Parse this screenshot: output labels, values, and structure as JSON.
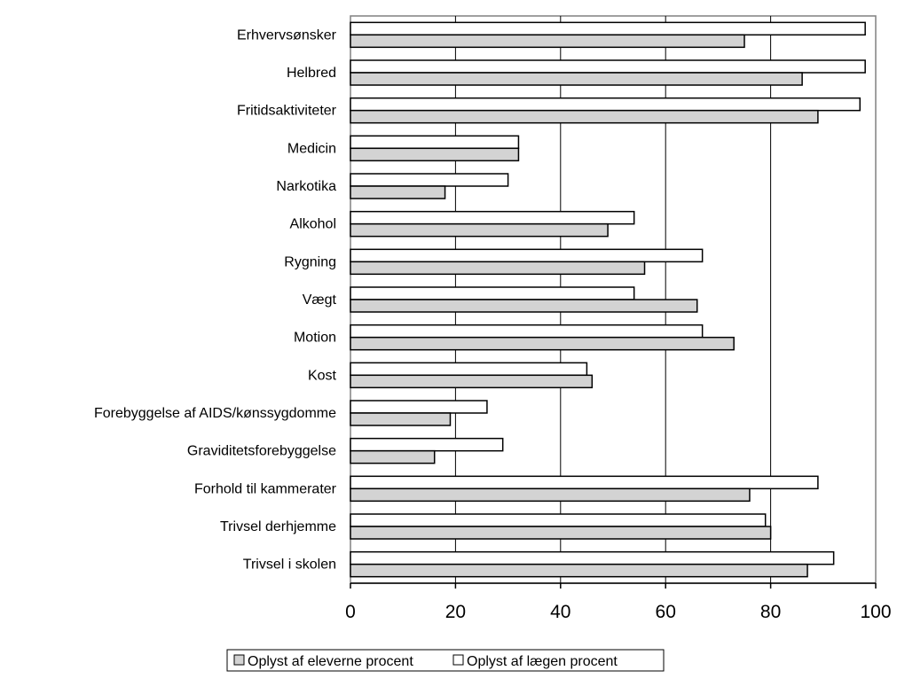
{
  "chart_data": {
    "type": "bar",
    "orientation": "horizontal",
    "categories": [
      "Erhvervsønsker",
      "Helbred",
      "Fritidsaktiviteter",
      "Medicin",
      "Narkotika",
      "Alkohol",
      "Rygning",
      "Vægt",
      "Motion",
      "Kost",
      "Forebyggelse af AIDS/kønssygdomme",
      "Graviditetsforebyggelse",
      "Forhold til kammerater",
      "Trivsel derhjemme",
      "Trivsel i skolen"
    ],
    "series": [
      {
        "name": "Oplyst af eleverne procent",
        "color": "#d3d3d3",
        "values": [
          75,
          86,
          89,
          32,
          18,
          49,
          56,
          66,
          73,
          46,
          19,
          16,
          76,
          80,
          87
        ]
      },
      {
        "name": "Oplyst af lægen procent",
        "color": "#ffffff",
        "values": [
          98,
          98,
          97,
          32,
          30,
          54,
          67,
          54,
          67,
          45,
          26,
          29,
          89,
          79,
          92
        ]
      }
    ],
    "xlim": [
      0,
      100
    ],
    "xticks": [
      0,
      20,
      40,
      60,
      80,
      100
    ],
    "grid": true,
    "legend_position": "bottom"
  }
}
